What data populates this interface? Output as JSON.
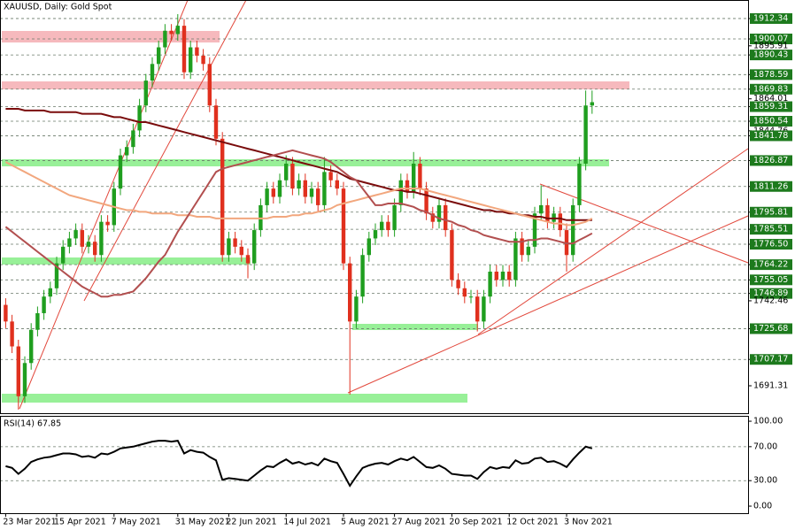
{
  "chart_data": [
    {
      "type": "candlestick",
      "title": "XAUUSD, Daily:  Gold Spot",
      "categories": [
        "23 Mar 2021",
        null,
        null,
        null,
        null,
        null,
        null,
        null,
        "15 Apr 2021",
        null,
        null,
        null,
        null,
        null,
        null,
        null,
        null,
        "7 May 2021",
        null,
        null,
        null,
        null,
        null,
        null,
        null,
        null,
        null,
        "31 May 2021",
        null,
        null,
        null,
        null,
        null,
        null,
        null,
        "22 Jun 2021",
        null,
        null,
        null,
        null,
        null,
        null,
        null,
        null,
        "14 Jul 2021",
        null,
        null,
        null,
        null,
        null,
        null,
        null,
        null,
        "5 Aug 2021",
        null,
        null,
        null,
        null,
        null,
        null,
        null,
        "27 Aug 2021",
        null,
        null,
        null,
        null,
        null,
        null,
        null,
        null,
        "20 Sep 2021",
        null,
        null,
        null,
        null,
        null,
        null,
        null,
        null,
        "12 Oct 2021",
        null,
        null,
        null,
        null,
        null,
        null,
        null,
        null,
        "3 Nov 2021",
        null,
        null,
        null,
        null
      ],
      "open": [
        1740,
        1730,
        1715,
        1685,
        1705,
        1725,
        1735,
        1745,
        1750,
        1765,
        1775,
        1780,
        1785,
        1775,
        1778,
        1770,
        1790,
        1788,
        1810,
        1830,
        1835,
        1845,
        1860,
        1875,
        1885,
        1895,
        1905,
        1903,
        1908,
        1880,
        1895,
        1890,
        1885,
        1860,
        1840,
        1770,
        1780,
        1775,
        1770,
        1765,
        1785,
        1800,
        1810,
        1805,
        1815,
        1825,
        1810,
        1815,
        1805,
        1810,
        1800,
        1820,
        1815,
        1810,
        1765,
        1730,
        1745,
        1770,
        1780,
        1785,
        1790,
        1785,
        1800,
        1815,
        1808,
        1825,
        1810,
        1795,
        1790,
        1800,
        1785,
        1755,
        1750,
        1745,
        1745,
        1730,
        1745,
        1760,
        1755,
        1760,
        1755,
        1780,
        1770,
        1775,
        1795,
        1800,
        1790,
        1795,
        1785,
        1770,
        1800,
        1825,
        1860
      ],
      "high": [
        1744,
        1734,
        1719,
        1709,
        1729,
        1739,
        1749,
        1754,
        1769,
        1779,
        1784,
        1789,
        1789,
        1782,
        1782,
        1794,
        1794,
        1814,
        1834,
        1839,
        1849,
        1864,
        1879,
        1889,
        1899,
        1909,
        1909,
        1915,
        1912,
        1899,
        1899,
        1894,
        1889,
        1864,
        1844,
        1784,
        1784,
        1779,
        1774,
        1789,
        1804,
        1814,
        1814,
        1819,
        1830,
        1829,
        1819,
        1819,
        1814,
        1814,
        1829,
        1824,
        1819,
        1814,
        1769,
        1749,
        1774,
        1784,
        1789,
        1794,
        1794,
        1804,
        1819,
        1819,
        1832,
        1829,
        1814,
        1799,
        1804,
        1804,
        1789,
        1759,
        1754,
        1749,
        1749,
        1749,
        1764,
        1764,
        1764,
        1764,
        1784,
        1784,
        1779,
        1799,
        1812,
        1804,
        1799,
        1799,
        1789,
        1804,
        1829,
        1869,
        1869
      ],
      "low": [
        1726,
        1711,
        1677,
        1681,
        1701,
        1721,
        1731,
        1741,
        1746,
        1761,
        1771,
        1776,
        1771,
        1771,
        1766,
        1766,
        1784,
        1784,
        1806,
        1826,
        1831,
        1841,
        1856,
        1871,
        1881,
        1891,
        1899,
        1899,
        1876,
        1876,
        1886,
        1881,
        1856,
        1836,
        1766,
        1766,
        1771,
        1766,
        1756,
        1761,
        1781,
        1796,
        1801,
        1801,
        1811,
        1806,
        1806,
        1801,
        1801,
        1796,
        1796,
        1811,
        1806,
        1761,
        1686,
        1726,
        1741,
        1766,
        1776,
        1781,
        1781,
        1781,
        1796,
        1804,
        1804,
        1806,
        1791,
        1786,
        1786,
        1781,
        1751,
        1746,
        1741,
        1741,
        1724,
        1726,
        1741,
        1751,
        1751,
        1751,
        1751,
        1766,
        1766,
        1771,
        1791,
        1786,
        1786,
        1781,
        1760,
        1766,
        1796,
        1821,
        1855
      ],
      "close": [
        1730,
        1715,
        1685,
        1705,
        1725,
        1735,
        1745,
        1750,
        1765,
        1775,
        1780,
        1785,
        1775,
        1778,
        1770,
        1790,
        1788,
        1810,
        1830,
        1835,
        1845,
        1860,
        1875,
        1885,
        1895,
        1905,
        1903,
        1908,
        1880,
        1895,
        1890,
        1885,
        1860,
        1840,
        1770,
        1780,
        1775,
        1770,
        1765,
        1785,
        1800,
        1810,
        1805,
        1815,
        1825,
        1810,
        1815,
        1805,
        1810,
        1800,
        1820,
        1815,
        1810,
        1765,
        1730,
        1745,
        1770,
        1780,
        1785,
        1790,
        1785,
        1800,
        1815,
        1808,
        1825,
        1810,
        1795,
        1790,
        1800,
        1785,
        1755,
        1750,
        1745,
        1745,
        1730,
        1745,
        1760,
        1755,
        1760,
        1755,
        1780,
        1770,
        1775,
        1795,
        1800,
        1790,
        1795,
        1785,
        1770,
        1800,
        1825,
        1860,
        1862
      ],
      "up_color": "#1f9e1f",
      "down_color": "#e0301e",
      "series": [
        {
          "color": "#7a0c0c",
          "values": [
            1858,
            1858,
            1858,
            1857,
            1857,
            1857,
            1857,
            1856,
            1856,
            1856,
            1856,
            1856,
            1855,
            1855,
            1855,
            1855,
            1854,
            1853,
            1853,
            1852,
            1851,
            1850,
            1850,
            1849,
            1848,
            1847,
            1846,
            1845,
            1844,
            1843,
            1842,
            1841,
            1840,
            1839,
            1838,
            1837,
            1836,
            1835,
            1834,
            1833,
            1832,
            1831,
            1830,
            1829,
            1828,
            1827,
            1826,
            1825,
            1824,
            1823,
            1822,
            1821,
            1820,
            1818,
            1816,
            1815,
            1814,
            1813,
            1812,
            1811,
            1810,
            1809,
            1809,
            1808,
            1808,
            1807,
            1806,
            1805,
            1804,
            1803,
            1802,
            1801,
            1800,
            1799,
            1798,
            1797,
            1797,
            1796,
            1796,
            1795,
            1795,
            1794,
            1794,
            1793,
            1793,
            1792,
            1792,
            1792,
            1791,
            1791,
            1791,
            1791,
            1791
          ]
        },
        {
          "color": "#f2a77e",
          "values": [
            1826,
            1824,
            1822,
            1820,
            1818,
            1816,
            1814,
            1812,
            1810,
            1808,
            1806,
            1805,
            1804,
            1803,
            1802,
            1801,
            1800,
            1799,
            1798,
            1797,
            1797,
            1796,
            1796,
            1795,
            1795,
            1795,
            1795,
            1794,
            1794,
            1794,
            1793,
            1793,
            1793,
            1792,
            1792,
            1792,
            1792,
            1792,
            1792,
            1792,
            1792,
            1792,
            1793,
            1793,
            1793,
            1794,
            1794,
            1795,
            1795,
            1796,
            1797,
            1798,
            1800,
            1801,
            1802,
            1803,
            1804,
            1805,
            1806,
            1807,
            1808,
            1809,
            1810,
            1810,
            1810,
            1810,
            1809,
            1808,
            1807,
            1806,
            1805,
            1804,
            1803,
            1802,
            1801,
            1800,
            1799,
            1798,
            1797,
            1796,
            1795,
            1794,
            1793,
            1792,
            1791,
            1790,
            1789,
            1789,
            1788,
            1788,
            1789,
            1790,
            1792
          ]
        },
        {
          "color": "#b24f4f",
          "values": [
            1787,
            1784,
            1781,
            1778,
            1775,
            1772,
            1769,
            1766,
            1763,
            1760,
            1757,
            1754,
            1751,
            1749,
            1747,
            1745,
            1745,
            1746,
            1746,
            1747,
            1748,
            1752,
            1756,
            1761,
            1766,
            1770,
            1777,
            1784,
            1790,
            1796,
            1802,
            1808,
            1814,
            1820,
            1822,
            1823,
            1824,
            1825,
            1826,
            1827,
            1828,
            1829,
            1830,
            1831,
            1832,
            1833,
            1832,
            1831,
            1830,
            1829,
            1828,
            1826,
            1823,
            1820,
            1817,
            1815,
            1810,
            1805,
            1800,
            1800,
            1801,
            1801,
            1801,
            1800,
            1799,
            1797,
            1796,
            1794,
            1792,
            1791,
            1790,
            1788,
            1787,
            1785,
            1784,
            1782,
            1781,
            1780,
            1779,
            1778,
            1778,
            1778,
            1779,
            1779,
            1780,
            1780,
            1779,
            1778,
            1777,
            1777,
            1779,
            1781,
            1783
          ]
        }
      ],
      "ylim": [
        1674.8,
        1923.5
      ],
      "yticks": [
        1912.34,
        1900.07,
        1895.91,
        1890.43,
        1878.59,
        1869.83,
        1864.01,
        1859.31,
        1850.54,
        1844.76,
        1841.78,
        1826.87,
        1811.26,
        1795.81,
        1785.51,
        {
          "value": 1776.5,
          "label": "1776.50"
        },
        1764.22,
        1755.05,
        1746.89,
        1742.46,
        1725.68,
        1707.17,
        1691.31
      ],
      "levels": [
        1912.34,
        1900.07,
        1890.43,
        1878.59,
        1869.83,
        1859.31,
        1850.54,
        1841.78,
        1826.87,
        1811.26,
        1795.81,
        1785.51,
        1776.5,
        1764.22,
        1755.05,
        1746.89,
        1725.68,
        1707.17
      ],
      "level_color": "#1d7a1d"
    },
    {
      "type": "line",
      "title": "RSI(14) 67.85",
      "color": "#000000",
      "values": [
        47,
        45,
        38,
        44,
        52,
        55,
        57,
        58,
        60,
        62,
        62,
        61,
        58,
        59,
        57,
        62,
        61,
        64,
        68,
        69,
        70,
        72,
        74,
        76,
        77,
        77,
        76,
        77,
        62,
        66,
        64,
        63,
        58,
        54,
        31,
        33,
        32,
        31,
        30,
        36,
        42,
        47,
        46,
        51,
        55,
        50,
        52,
        49,
        51,
        48,
        56,
        53,
        51,
        38,
        24,
        35,
        45,
        48,
        50,
        51,
        49,
        53,
        56,
        54,
        58,
        52,
        46,
        45,
        48,
        44,
        38,
        37,
        36,
        36,
        32,
        40,
        46,
        44,
        46,
        45,
        54,
        50,
        51,
        56,
        57,
        52,
        53,
        50,
        46,
        55,
        63,
        70,
        68
      ],
      "ylim": [
        -8.3,
        106.3
      ],
      "yticks": [
        {
          "value": 100,
          "label": "100.00"
        },
        {
          "value": 70,
          "label": "70.00"
        },
        {
          "value": 30,
          "label": "30.00"
        },
        {
          "value": 0,
          "label": "0.00"
        }
      ],
      "levels": [
        70,
        30
      ]
    }
  ]
}
